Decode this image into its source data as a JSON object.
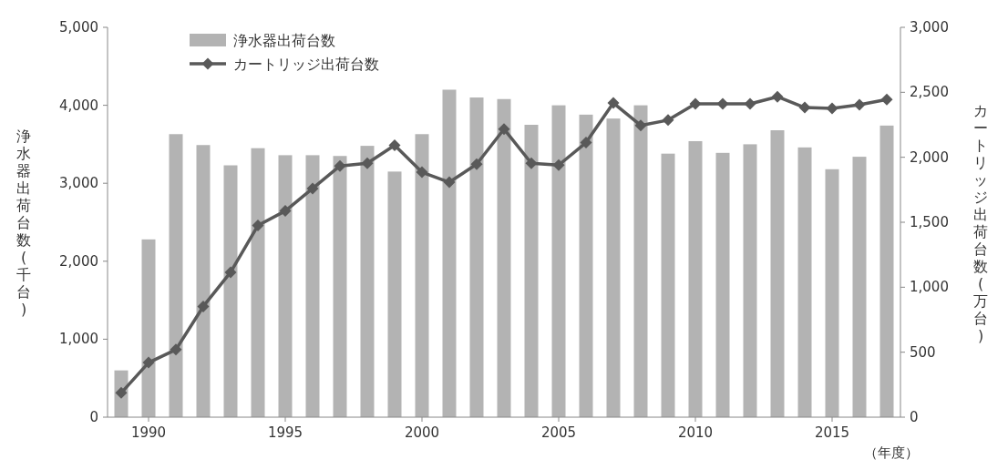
{
  "chart_data": {
    "type": "bar",
    "xlabel": null,
    "ylabel": "浄水器出荷台数(千台)",
    "y2label": "カートリッジ出荷台数(万台)",
    "x": [
      1989,
      1990,
      1991,
      1992,
      1993,
      1994,
      1995,
      1996,
      1997,
      1998,
      1999,
      2000,
      2001,
      2002,
      2003,
      2004,
      2005,
      2006,
      2007,
      2008,
      2009,
      2010,
      2011,
      2012,
      2013,
      2014,
      2015,
      2016,
      2017
    ],
    "series": [
      {
        "name": "浄水器出荷台数",
        "color": "#b3b3b3",
        "values": [
          600,
          2280,
          3630,
          3490,
          3230,
          3450,
          3360,
          3360,
          3350,
          3480,
          3150,
          3630,
          4200,
          4100,
          4080,
          3750,
          4000,
          3880,
          3830,
          4000,
          3380,
          3540,
          3390,
          3500,
          3680,
          3460,
          3180,
          3340,
          3740
        ]
      },
      {
        "name": "カートリッジ出荷台数",
        "type": "line",
        "axis": "y2",
        "color": "#595959",
        "values": [
          187,
          420,
          520,
          852,
          1115,
          1475,
          1587,
          1760,
          1933,
          1954,
          2092,
          1885,
          1808,
          1947,
          2217,
          1954,
          1940,
          2113,
          2418,
          2245,
          2286,
          2411,
          2411,
          2411,
          2466,
          2383,
          2376,
          2404,
          2445
        ]
      }
    ],
    "xlim": [
      1988.5,
      2017.5
    ],
    "xticks": [
      1990,
      1995,
      2000,
      2005,
      2010,
      2015
    ],
    "ylim": [
      0,
      5000
    ],
    "yticks": [
      0,
      {
        "value": 1000,
        "label": "1,000"
      },
      {
        "value": 2000,
        "label": "2,000"
      },
      {
        "value": 3000,
        "label": "3,000"
      },
      {
        "value": 4000,
        "label": "4,000"
      },
      {
        "value": 5000,
        "label": "5,000"
      }
    ],
    "y2lim": [
      0,
      3000
    ],
    "y2ticks": [
      0,
      500,
      {
        "value": 1000,
        "label": "1,000"
      },
      {
        "value": 1500,
        "label": "1,500"
      },
      {
        "value": 2000,
        "label": "2,000"
      },
      {
        "value": 2500,
        "label": "2,500"
      },
      {
        "value": 3000,
        "label": "3,000"
      }
    ],
    "annotations": [
      "（年度）"
    ],
    "legend": "top left",
    "marker": "diamond",
    "line_style": "solid",
    "grid": false
  }
}
